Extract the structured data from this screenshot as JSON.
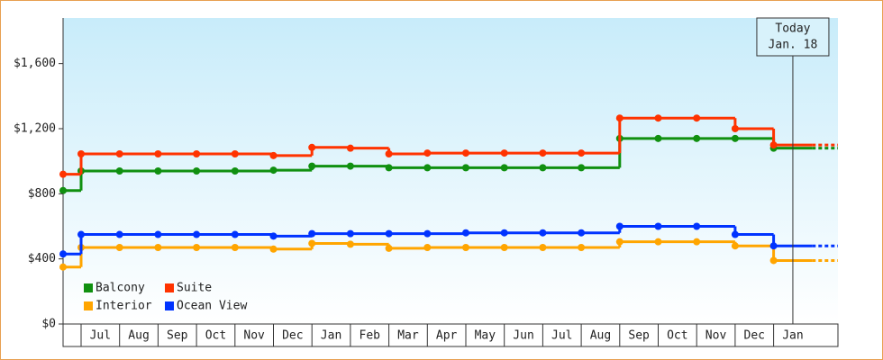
{
  "chart_data": {
    "type": "step-line",
    "categories": [
      null,
      "Jul",
      "Aug",
      "Sep",
      "Oct",
      "Nov",
      "Dec",
      "Jan",
      "Feb",
      "Mar",
      "Apr",
      "May",
      "Jun",
      "Jul",
      "Aug",
      "Sep",
      "Oct",
      "Nov",
      "Dec",
      "Jan"
    ],
    "series": [
      {
        "name": "Balcony",
        "color": "#109010",
        "values": [
          820,
          940,
          940,
          940,
          940,
          940,
          945,
          970,
          970,
          960,
          960,
          960,
          960,
          960,
          960,
          1140,
          1140,
          1140,
          1140,
          1080
        ]
      },
      {
        "name": "Suite",
        "color": "#ff3300",
        "values": [
          920,
          1045,
          1045,
          1045,
          1045,
          1045,
          1035,
          1085,
          1080,
          1045,
          1050,
          1050,
          1050,
          1050,
          1050,
          1265,
          1265,
          1265,
          1200,
          1100
        ]
      },
      {
        "name": "Interior",
        "color": "#ffa500",
        "values": [
          350,
          470,
          470,
          470,
          470,
          470,
          460,
          495,
          490,
          465,
          470,
          470,
          470,
          470,
          470,
          505,
          505,
          505,
          480,
          390
        ]
      },
      {
        "name": "Ocean View",
        "color": "#0033ff",
        "values": [
          430,
          550,
          550,
          550,
          550,
          550,
          540,
          555,
          555,
          555,
          555,
          560,
          560,
          560,
          560,
          600,
          600,
          600,
          550,
          480
        ]
      }
    ],
    "ylim": [
      0,
      1880
    ],
    "yticks": [
      {
        "value": 0,
        "label": "$0"
      },
      {
        "value": 400,
        "label": "$400"
      },
      {
        "value": 800,
        "label": "$800"
      },
      {
        "value": 1200,
        "label": "$1,200"
      },
      {
        "value": 1600,
        "label": "$1,600"
      }
    ],
    "annotation": {
      "lines": [
        "Today",
        "Jan. 18"
      ]
    }
  }
}
